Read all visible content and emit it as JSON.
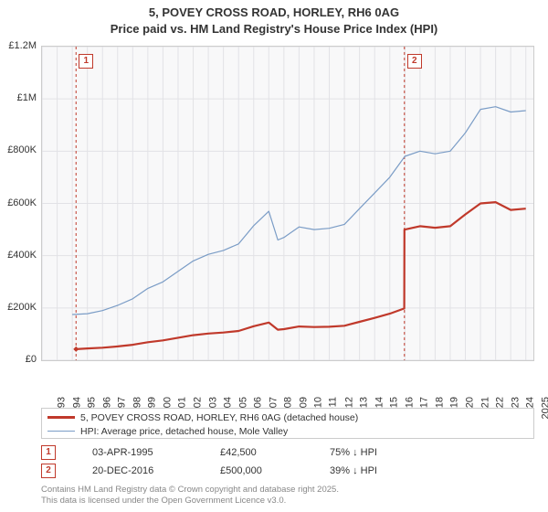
{
  "title_line1": "5, POVEY CROSS ROAD, HORLEY, RH6 0AG",
  "title_line2": "Price paid vs. HM Land Registry's House Price Index (HPI)",
  "chart": {
    "type": "line",
    "background_color": "#f8f8f9",
    "border_color": "#cccccc",
    "grid_color": "#e2e2e6",
    "xlim": [
      1993,
      2025.5
    ],
    "ylim": [
      0,
      1200000
    ],
    "ytick_step": 200000,
    "ylabels": [
      "£0",
      "£200K",
      "£400K",
      "£600K",
      "£800K",
      "£1M",
      "£1.2M"
    ],
    "xticks": [
      1993,
      1994,
      1995,
      1996,
      1997,
      1998,
      1999,
      2000,
      2001,
      2002,
      2003,
      2004,
      2005,
      2006,
      2007,
      2008,
      2009,
      2010,
      2011,
      2012,
      2013,
      2014,
      2015,
      2016,
      2017,
      2018,
      2019,
      2020,
      2021,
      2022,
      2023,
      2024,
      2025
    ],
    "series": [
      {
        "name": "hpi",
        "label": "HPI: Average price, detached house, Mole Valley",
        "color": "#7a9cc6",
        "width": 1.2,
        "data": [
          [
            1995,
            175000
          ],
          [
            1996,
            178000
          ],
          [
            1997,
            190000
          ],
          [
            1998,
            210000
          ],
          [
            1999,
            235000
          ],
          [
            2000,
            275000
          ],
          [
            2001,
            300000
          ],
          [
            2002,
            340000
          ],
          [
            2003,
            380000
          ],
          [
            2004,
            405000
          ],
          [
            2005,
            420000
          ],
          [
            2006,
            445000
          ],
          [
            2007,
            515000
          ],
          [
            2008,
            570000
          ],
          [
            2008.6,
            460000
          ],
          [
            2009,
            470000
          ],
          [
            2010,
            510000
          ],
          [
            2011,
            500000
          ],
          [
            2012,
            505000
          ],
          [
            2013,
            520000
          ],
          [
            2014,
            580000
          ],
          [
            2015,
            640000
          ],
          [
            2016,
            700000
          ],
          [
            2017,
            780000
          ],
          [
            2018,
            800000
          ],
          [
            2019,
            790000
          ],
          [
            2020,
            800000
          ],
          [
            2021,
            870000
          ],
          [
            2022,
            960000
          ],
          [
            2023,
            970000
          ],
          [
            2024,
            950000
          ],
          [
            2025,
            955000
          ]
        ]
      },
      {
        "name": "price_paid",
        "label": "5, POVEY CROSS ROAD, HORLEY, RH6 0AG (detached house)",
        "color": "#c0392b",
        "width": 2.2,
        "data": [
          [
            1995.25,
            42500
          ],
          [
            1996,
            45000
          ],
          [
            1997,
            48000
          ],
          [
            1998,
            53000
          ],
          [
            1999,
            59000
          ],
          [
            2000,
            69000
          ],
          [
            2001,
            76000
          ],
          [
            2002,
            86000
          ],
          [
            2003,
            96000
          ],
          [
            2004,
            102000
          ],
          [
            2005,
            106000
          ],
          [
            2006,
            112000
          ],
          [
            2007,
            130000
          ],
          [
            2008,
            144000
          ],
          [
            2008.6,
            117000
          ],
          [
            2009,
            119000
          ],
          [
            2010,
            129000
          ],
          [
            2011,
            127000
          ],
          [
            2012,
            128000
          ],
          [
            2013,
            132000
          ],
          [
            2014,
            147000
          ],
          [
            2015,
            162000
          ],
          [
            2016,
            178000
          ],
          [
            2016.96,
            198000
          ],
          [
            2016.97,
            500000
          ],
          [
            2017,
            500000
          ],
          [
            2018,
            513000
          ],
          [
            2019,
            507000
          ],
          [
            2020,
            513000
          ],
          [
            2021,
            558000
          ],
          [
            2022,
            600000
          ],
          [
            2023,
            605000
          ],
          [
            2024,
            575000
          ],
          [
            2025,
            580000
          ]
        ],
        "start_marker": {
          "x": 1995.25,
          "y": 42500,
          "shape": "diamond",
          "size": 6
        }
      }
    ],
    "transaction_lines": [
      {
        "x": 1995.25,
        "label": "1"
      },
      {
        "x": 2016.97,
        "label": "2"
      }
    ]
  },
  "legend": {
    "items": [
      {
        "color": "#c0392b",
        "width": 2.2,
        "label": "5, POVEY CROSS ROAD, HORLEY, RH6 0AG (detached house)"
      },
      {
        "color": "#7a9cc6",
        "width": 1.2,
        "label": "HPI: Average price, detached house, Mole Valley"
      }
    ]
  },
  "transactions": [
    {
      "marker": "1",
      "date": "03-APR-1995",
      "price": "£42,500",
      "delta": "75% ↓ HPI"
    },
    {
      "marker": "2",
      "date": "20-DEC-2016",
      "price": "£500,000",
      "delta": "39% ↓ HPI"
    }
  ],
  "credits_line1": "Contains HM Land Registry data © Crown copyright and database right 2025.",
  "credits_line2": "This data is licensed under the Open Government Licence v3.0."
}
